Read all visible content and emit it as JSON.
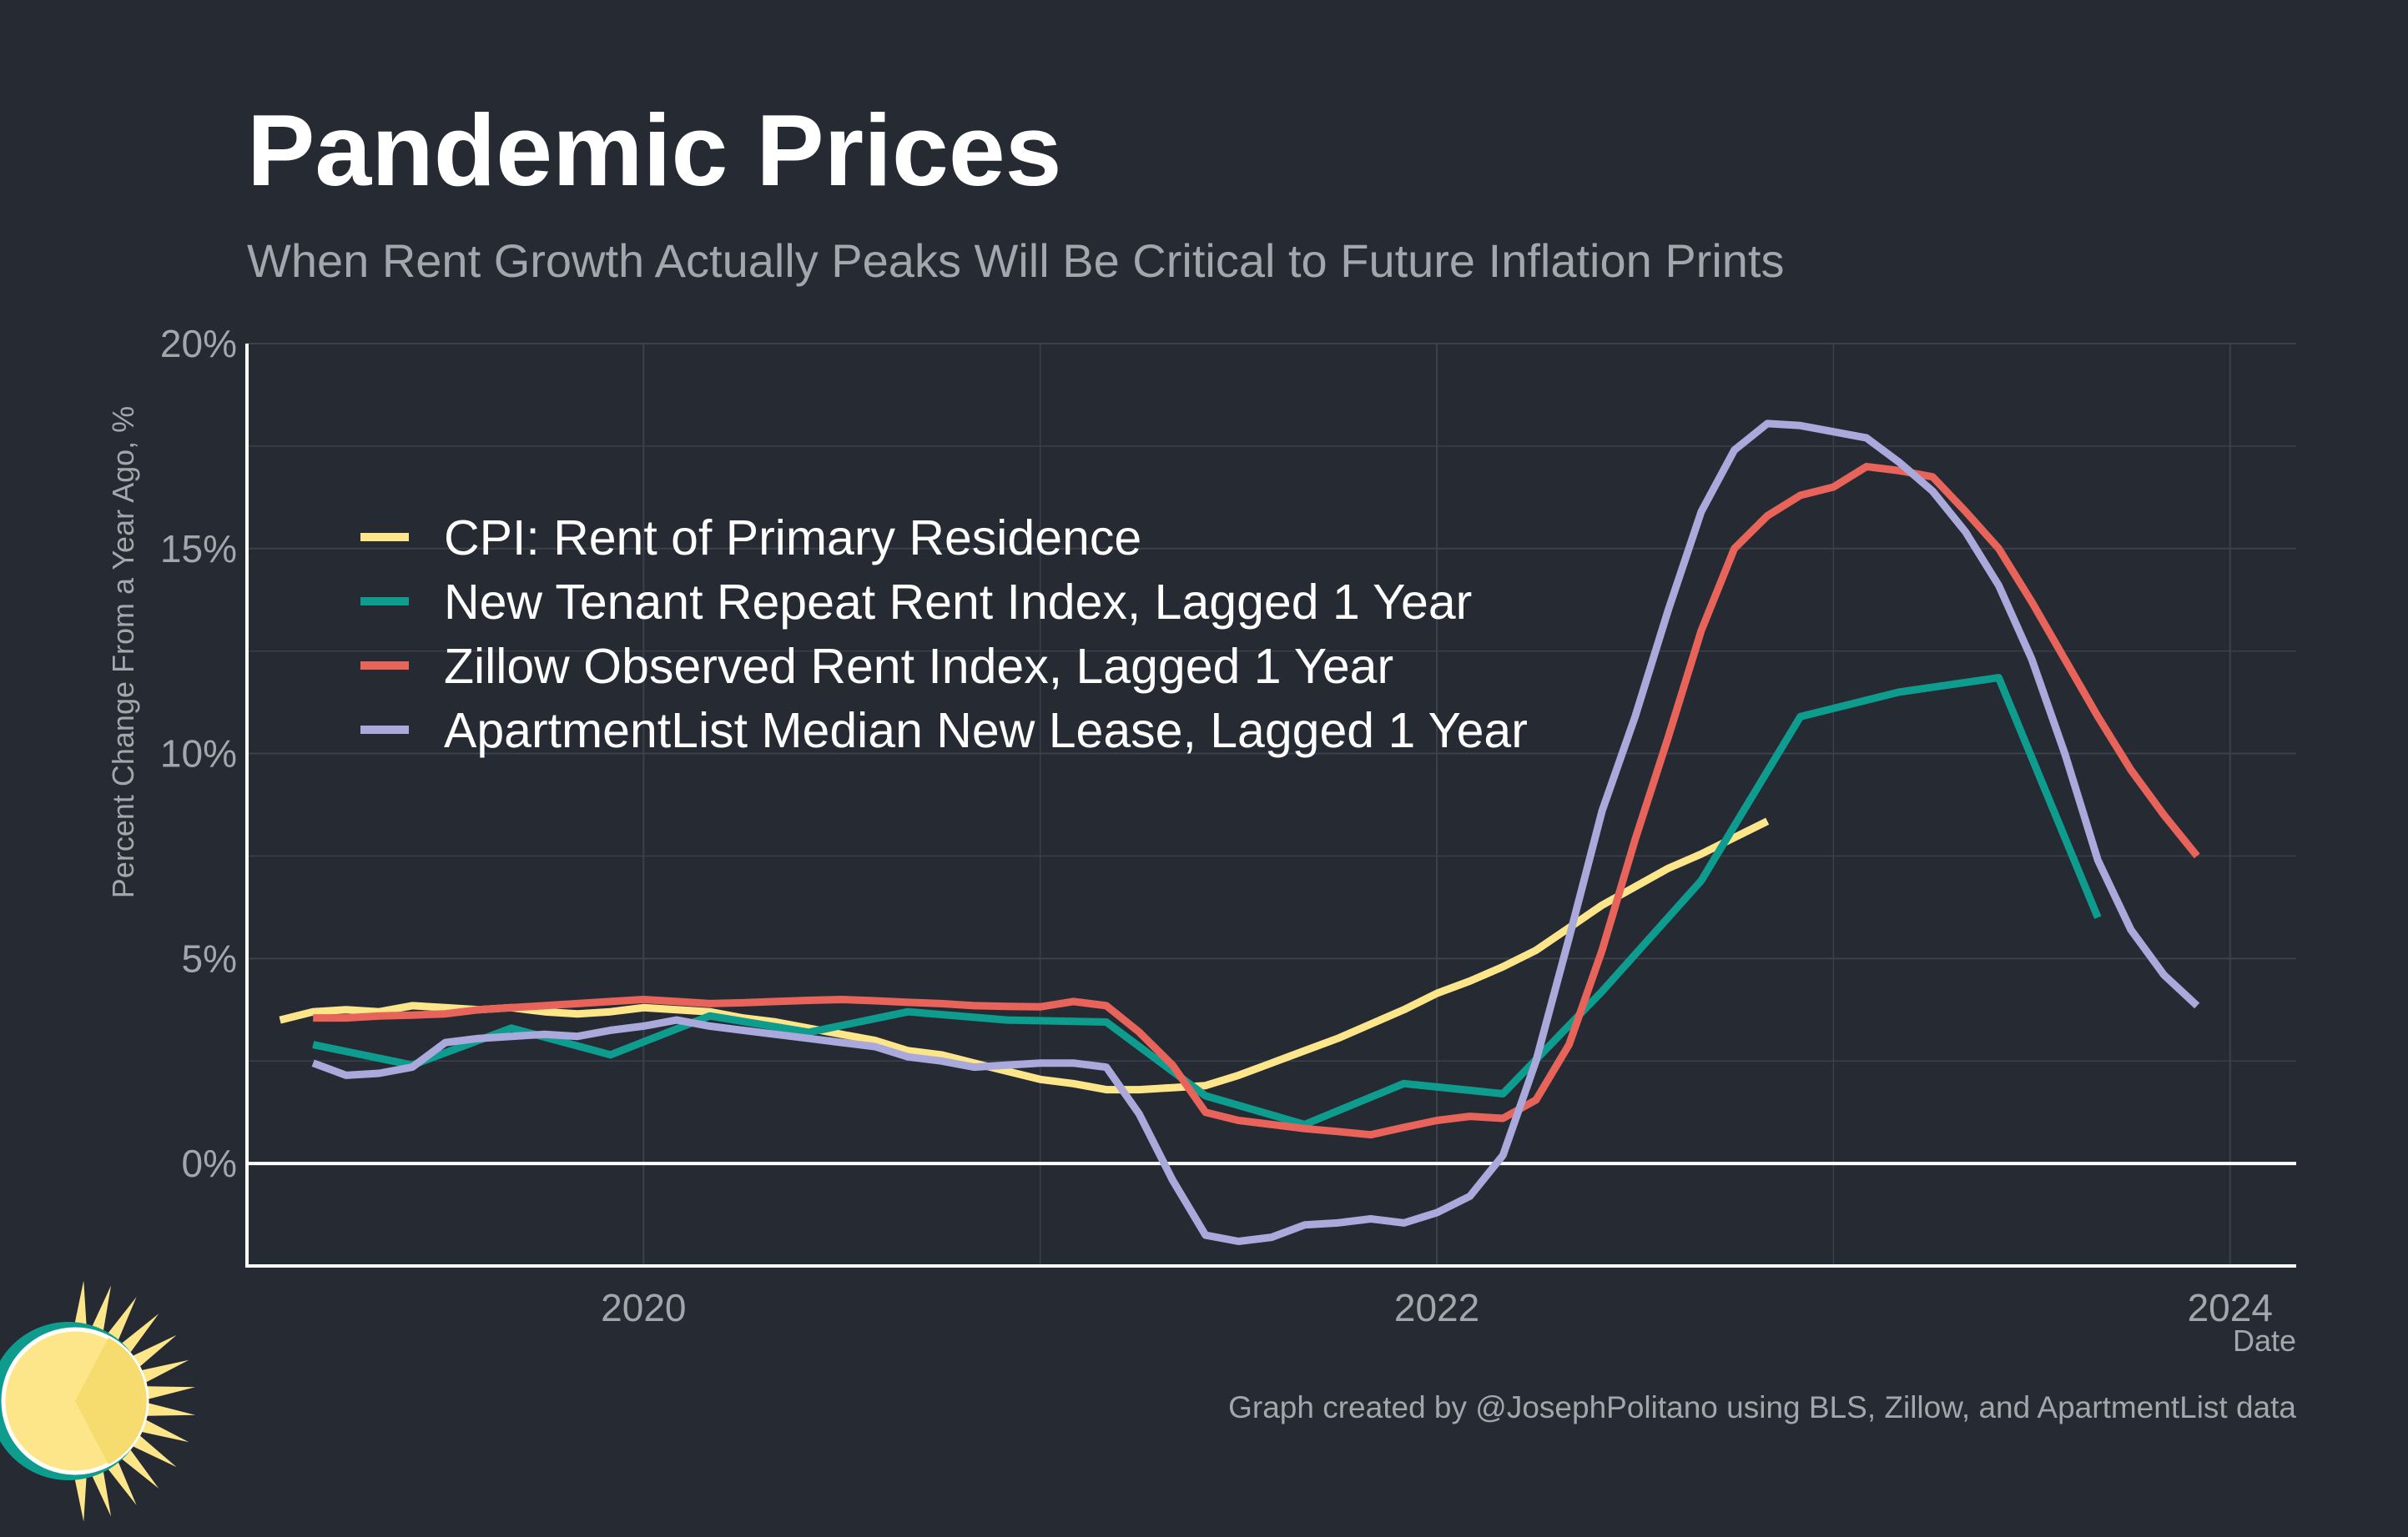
{
  "title": "Pandemic Prices",
  "subtitle": "When Rent Growth Actually Peaks Will Be Critical to Future Inflation Prints",
  "caption": "Graph created by @JosephPolitano using BLS, Zillow, and ApartmentList data",
  "colors": {
    "background": "#252a33",
    "grid": "#3c414b",
    "axis": "#ffffff",
    "cpi": "#fde68a",
    "ntrr": "#0e9c8e",
    "zillow": "#e8645a",
    "apartmentlist": "#a9a9dc",
    "logo_ring": "#0e9c8e",
    "logo_sun": "#fde68a"
  },
  "chart_data": {
    "type": "line",
    "title": "Pandemic Prices",
    "subtitle": "When Rent Growth Actually Peaks Will Be Critical to Future Inflation Prints",
    "xlabel": "Date",
    "ylabel": "Percent Change From a Year Ago, %",
    "xlim": [
      "2019-01",
      "2024-03"
    ],
    "ylim": [
      -2.5,
      20
    ],
    "x_ticks": [
      "2020",
      "2022",
      "2024"
    ],
    "y_ticks": [
      "0%",
      "5%",
      "10%",
      "15%",
      "20%"
    ],
    "legend_position": "top-left (inside plot)",
    "grid": true,
    "series": [
      {
        "name": "CPI: Rent of Primary Residence",
        "color": "#fde68a",
        "points": [
          [
            "2019-02",
            3.5
          ],
          [
            "2019-03",
            3.7
          ],
          [
            "2019-04",
            3.75
          ],
          [
            "2019-05",
            3.7
          ],
          [
            "2019-06",
            3.85
          ],
          [
            "2019-07",
            3.8
          ],
          [
            "2019-08",
            3.75
          ],
          [
            "2019-09",
            3.8
          ],
          [
            "2019-10",
            3.7
          ],
          [
            "2019-11",
            3.65
          ],
          [
            "2019-12",
            3.7
          ],
          [
            "2020-01",
            3.8
          ],
          [
            "2020-02",
            3.75
          ],
          [
            "2020-03",
            3.7
          ],
          [
            "2020-04",
            3.55
          ],
          [
            "2020-05",
            3.45
          ],
          [
            "2020-06",
            3.3
          ],
          [
            "2020-07",
            3.15
          ],
          [
            "2020-08",
            3.0
          ],
          [
            "2020-09",
            2.75
          ],
          [
            "2020-10",
            2.65
          ],
          [
            "2020-11",
            2.45
          ],
          [
            "2020-12",
            2.25
          ],
          [
            "2021-01",
            2.05
          ],
          [
            "2021-02",
            1.95
          ],
          [
            "2021-03",
            1.8
          ],
          [
            "2021-04",
            1.8
          ],
          [
            "2021-05",
            1.85
          ],
          [
            "2021-06",
            1.9
          ],
          [
            "2021-07",
            2.15
          ],
          [
            "2021-08",
            2.45
          ],
          [
            "2021-09",
            2.75
          ],
          [
            "2021-10",
            3.05
          ],
          [
            "2021-11",
            3.4
          ],
          [
            "2021-12",
            3.75
          ],
          [
            "2022-01",
            4.15
          ],
          [
            "2022-02",
            4.45
          ],
          [
            "2022-03",
            4.8
          ],
          [
            "2022-04",
            5.2
          ],
          [
            "2022-05",
            5.75
          ],
          [
            "2022-06",
            6.3
          ],
          [
            "2022-07",
            6.75
          ],
          [
            "2022-08",
            7.2
          ],
          [
            "2022-09",
            7.55
          ],
          [
            "2022-10",
            7.95
          ],
          [
            "2022-11",
            8.35
          ]
        ]
      },
      {
        "name": "New Tenant Repeat Rent Index, Lagged 1 Year",
        "color": "#0e9c8e",
        "points": [
          [
            "2019-03",
            2.9
          ],
          [
            "2019-06",
            2.4
          ],
          [
            "2019-09",
            3.3
          ],
          [
            "2019-12",
            2.65
          ],
          [
            "2020-03",
            3.6
          ],
          [
            "2020-06",
            3.2
          ],
          [
            "2020-09",
            3.7
          ],
          [
            "2020-12",
            3.5
          ],
          [
            "2021-03",
            3.45
          ],
          [
            "2021-06",
            1.65
          ],
          [
            "2021-09",
            0.95
          ],
          [
            "2021-12",
            1.95
          ],
          [
            "2022-03",
            1.7
          ],
          [
            "2022-06",
            4.2
          ],
          [
            "2022-09",
            6.9
          ],
          [
            "2022-12",
            10.9
          ],
          [
            "2023-03",
            11.5
          ],
          [
            "2023-06",
            11.85
          ],
          [
            "2023-09",
            6.0
          ]
        ]
      },
      {
        "name": "Zillow Observed Rent Index, Lagged 1 Year",
        "color": "#e8645a",
        "points": [
          [
            "2019-03",
            3.55
          ],
          [
            "2019-04",
            3.55
          ],
          [
            "2019-05",
            3.6
          ],
          [
            "2019-06",
            3.62
          ],
          [
            "2019-07",
            3.65
          ],
          [
            "2019-08",
            3.75
          ],
          [
            "2019-09",
            3.8
          ],
          [
            "2019-10",
            3.85
          ],
          [
            "2019-11",
            3.9
          ],
          [
            "2019-12",
            3.95
          ],
          [
            "2020-01",
            4.0
          ],
          [
            "2020-02",
            3.95
          ],
          [
            "2020-03",
            3.9
          ],
          [
            "2020-04",
            3.92
          ],
          [
            "2020-05",
            3.95
          ],
          [
            "2020-06",
            3.98
          ],
          [
            "2020-07",
            4.0
          ],
          [
            "2020-08",
            3.97
          ],
          [
            "2020-09",
            3.93
          ],
          [
            "2020-10",
            3.9
          ],
          [
            "2020-11",
            3.85
          ],
          [
            "2020-12",
            3.83
          ],
          [
            "2021-01",
            3.82
          ],
          [
            "2021-02",
            3.95
          ],
          [
            "2021-03",
            3.85
          ],
          [
            "2021-04",
            3.2
          ],
          [
            "2021-05",
            2.4
          ],
          [
            "2021-06",
            1.25
          ],
          [
            "2021-07",
            1.05
          ],
          [
            "2021-08",
            0.95
          ],
          [
            "2021-09",
            0.85
          ],
          [
            "2021-10",
            0.78
          ],
          [
            "2021-11",
            0.7
          ],
          [
            "2021-12",
            0.88
          ],
          [
            "2022-01",
            1.05
          ],
          [
            "2022-02",
            1.15
          ],
          [
            "2022-03",
            1.1
          ],
          [
            "2022-04",
            1.55
          ],
          [
            "2022-05",
            2.9
          ],
          [
            "2022-06",
            5.2
          ],
          [
            "2022-07",
            7.9
          ],
          [
            "2022-08",
            10.4
          ],
          [
            "2022-09",
            13.0
          ],
          [
            "2022-10",
            15.0
          ],
          [
            "2022-11",
            15.8
          ],
          [
            "2022-12",
            16.3
          ],
          [
            "2023-01",
            16.5
          ],
          [
            "2023-02",
            17.0
          ],
          [
            "2023-03",
            16.9
          ],
          [
            "2023-04",
            16.75
          ],
          [
            "2023-05",
            15.9
          ],
          [
            "2023-06",
            15.0
          ],
          [
            "2023-07",
            13.7
          ],
          [
            "2023-08",
            12.3
          ],
          [
            "2023-09",
            10.9
          ],
          [
            "2023-10",
            9.6
          ],
          [
            "2023-11",
            8.5
          ],
          [
            "2023-12",
            7.5
          ]
        ]
      },
      {
        "name": "ApartmentList Median New Lease, Lagged 1 Year",
        "color": "#a9a9dc",
        "points": [
          [
            "2019-03",
            2.45
          ],
          [
            "2019-04",
            2.15
          ],
          [
            "2019-05",
            2.2
          ],
          [
            "2019-06",
            2.35
          ],
          [
            "2019-07",
            2.95
          ],
          [
            "2019-08",
            3.05
          ],
          [
            "2019-09",
            3.1
          ],
          [
            "2019-10",
            3.15
          ],
          [
            "2019-11",
            3.1
          ],
          [
            "2019-12",
            3.25
          ],
          [
            "2020-01",
            3.35
          ],
          [
            "2020-02",
            3.5
          ],
          [
            "2020-03",
            3.35
          ],
          [
            "2020-04",
            3.25
          ],
          [
            "2020-05",
            3.15
          ],
          [
            "2020-06",
            3.05
          ],
          [
            "2020-07",
            2.95
          ],
          [
            "2020-08",
            2.85
          ],
          [
            "2020-09",
            2.6
          ],
          [
            "2020-10",
            2.5
          ],
          [
            "2020-11",
            2.35
          ],
          [
            "2020-12",
            2.4
          ],
          [
            "2021-01",
            2.45
          ],
          [
            "2021-02",
            2.45
          ],
          [
            "2021-03",
            2.35
          ],
          [
            "2021-04",
            1.2
          ],
          [
            "2021-05",
            -0.4
          ],
          [
            "2021-06",
            -1.75
          ],
          [
            "2021-07",
            -1.9
          ],
          [
            "2021-08",
            -1.8
          ],
          [
            "2021-09",
            -1.5
          ],
          [
            "2021-10",
            -1.45
          ],
          [
            "2021-11",
            -1.35
          ],
          [
            "2021-12",
            -1.45
          ],
          [
            "2022-01",
            -1.2
          ],
          [
            "2022-02",
            -0.8
          ],
          [
            "2022-03",
            0.2
          ],
          [
            "2022-04",
            2.5
          ],
          [
            "2022-05",
            5.5
          ],
          [
            "2022-06",
            8.6
          ],
          [
            "2022-07",
            10.9
          ],
          [
            "2022-08",
            13.5
          ],
          [
            "2022-09",
            15.9
          ],
          [
            "2022-10",
            17.4
          ],
          [
            "2022-11",
            18.05
          ],
          [
            "2022-12",
            18.0
          ],
          [
            "2023-01",
            17.85
          ],
          [
            "2023-02",
            17.7
          ],
          [
            "2023-03",
            17.1
          ],
          [
            "2023-04",
            16.4
          ],
          [
            "2023-05",
            15.4
          ],
          [
            "2023-06",
            14.1
          ],
          [
            "2023-07",
            12.3
          ],
          [
            "2023-08",
            10.0
          ],
          [
            "2023-09",
            7.4
          ],
          [
            "2023-10",
            5.7
          ],
          [
            "2023-11",
            4.6
          ],
          [
            "2023-12",
            3.85
          ]
        ]
      }
    ]
  }
}
